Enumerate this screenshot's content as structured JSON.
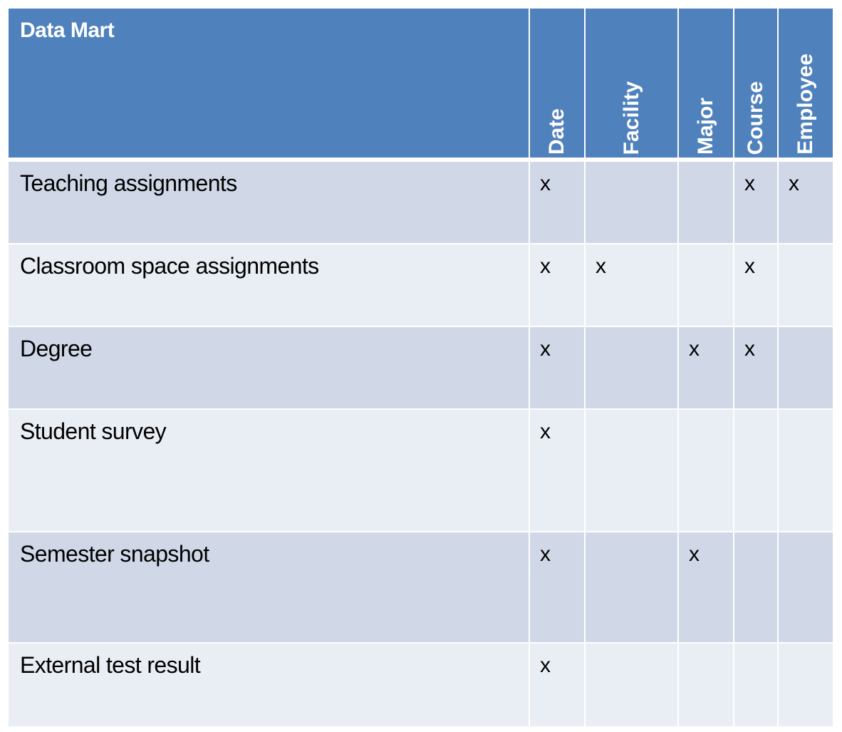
{
  "table": {
    "corner_header": "Data Mart",
    "columns": [
      "Date",
      "Facility",
      "Major",
      "Course",
      "Employee"
    ],
    "rows": [
      {
        "label": "Teaching assignments",
        "cells": [
          "x",
          "",
          "",
          "x",
          "x"
        ]
      },
      {
        "label": "Classroom space assignments",
        "cells": [
          "x",
          "x",
          "",
          "x",
          ""
        ]
      },
      {
        "label": "Degree",
        "cells": [
          "x",
          "",
          "x",
          "x",
          ""
        ]
      },
      {
        "label": "Student survey",
        "cells": [
          "x",
          "",
          "",
          "",
          ""
        ]
      },
      {
        "label": "Semester snapshot",
        "cells": [
          "x",
          "",
          "x",
          "",
          ""
        ]
      },
      {
        "label": "External test result",
        "cells": [
          "x",
          "",
          "",
          "",
          ""
        ]
      }
    ]
  },
  "colors": {
    "header_bg": "#4f81bd",
    "row_dark": "#d0d8e8",
    "row_light": "#e9edf4",
    "header_text": "#ffffff",
    "body_text": "#000000"
  }
}
